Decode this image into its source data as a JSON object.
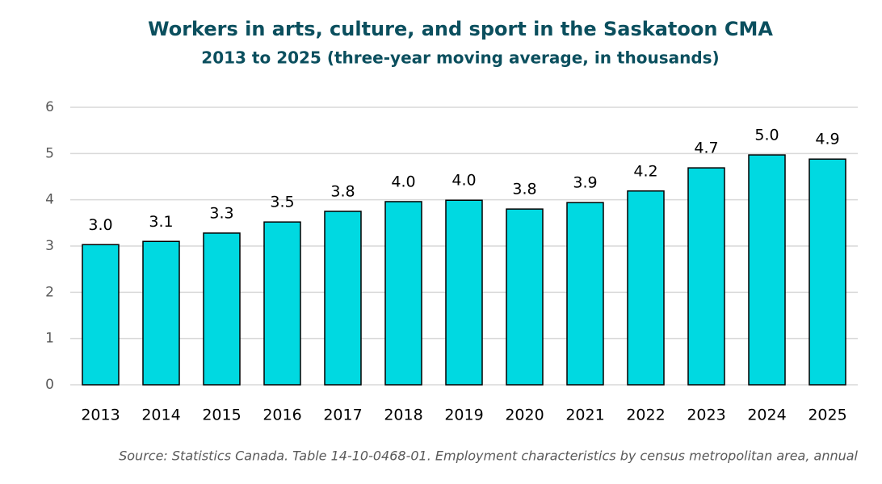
{
  "chart_data": {
    "type": "bar",
    "title": "Workers in arts, culture, and sport in the Saskatoon CMA",
    "subtitle": "2013 to 2025 (three-year moving average, in thousands)",
    "source": "Source: Statistics Canada. Table 14-10-0468-01. Employment characteristics by census metropolitan area, annual",
    "categories": [
      "2013",
      "2014",
      "2015",
      "2016",
      "2017",
      "2018",
      "2019",
      "2020",
      "2021",
      "2022",
      "2023",
      "2024",
      "2025"
    ],
    "values": [
      3.03,
      3.1,
      3.28,
      3.52,
      3.75,
      3.96,
      3.99,
      3.8,
      3.94,
      4.19,
      4.69,
      4.97,
      4.88
    ],
    "value_labels": [
      "3.0",
      "3.1",
      "3.3",
      "3.5",
      "3.8",
      "4.0",
      "4.0",
      "3.8",
      "3.9",
      "4.2",
      "4.7",
      "5.0",
      "4.9"
    ],
    "color": "#00d9e1",
    "ylim": [
      0,
      6
    ],
    "yticks": [
      0,
      1,
      2,
      3,
      4,
      5,
      6
    ],
    "grid": true
  }
}
